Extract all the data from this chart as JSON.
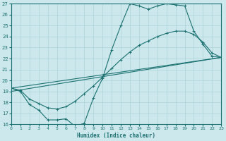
{
  "bg_color": "#cce8ec",
  "grid_color": "#aad4d8",
  "line_color": "#1a7070",
  "xlabel": "Humidex (Indice chaleur)",
  "xlim": [
    0,
    23
  ],
  "ylim": [
    16,
    27
  ],
  "xticks": [
    0,
    1,
    2,
    3,
    4,
    5,
    6,
    7,
    8,
    9,
    10,
    11,
    12,
    13,
    14,
    15,
    16,
    17,
    18,
    19,
    20,
    21,
    22,
    23
  ],
  "yticks": [
    16,
    17,
    18,
    19,
    20,
    21,
    22,
    23,
    24,
    25,
    26,
    27
  ],
  "line1_x": [
    0,
    1,
    2,
    3,
    4,
    5,
    6,
    7,
    8,
    9,
    10,
    11,
    12,
    13,
    14,
    15,
    16,
    17,
    18,
    19,
    20,
    21,
    22,
    23
  ],
  "line1_y": [
    19.3,
    19.0,
    17.8,
    17.3,
    16.4,
    16.4,
    16.5,
    15.8,
    16.1,
    18.4,
    20.2,
    22.8,
    25.0,
    27.0,
    26.8,
    26.5,
    26.8,
    27.0,
    26.9,
    26.8,
    24.5,
    23.3,
    22.2,
    22.1
  ],
  "line2_x": [
    0,
    1,
    2,
    3,
    4,
    5,
    6,
    7,
    8,
    9,
    10,
    11,
    12,
    13,
    14,
    15,
    16,
    17,
    18,
    19,
    20,
    21,
    22,
    23
  ],
  "line2_y": [
    19.3,
    19.1,
    18.3,
    17.9,
    17.5,
    17.4,
    17.6,
    18.1,
    18.8,
    19.5,
    20.3,
    21.1,
    21.9,
    22.6,
    23.2,
    23.6,
    24.0,
    24.3,
    24.5,
    24.5,
    24.2,
    23.5,
    22.5,
    22.1
  ],
  "line3_x": [
    0,
    23
  ],
  "line3_y": [
    19.3,
    22.1
  ],
  "line4_x": [
    0,
    23
  ],
  "line4_y": [
    19.0,
    22.1
  ]
}
